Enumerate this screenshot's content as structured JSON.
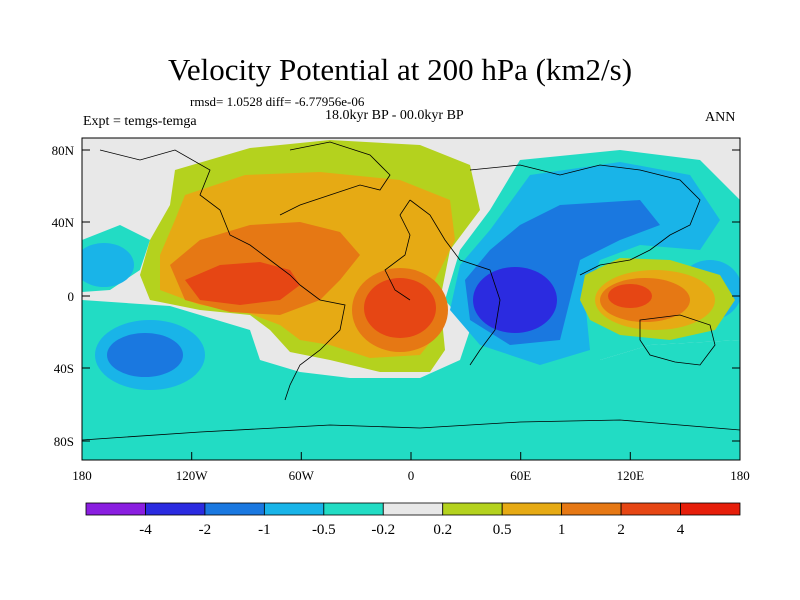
{
  "title": "Velocity Potential at 200 hPa (km2/s)",
  "stats": "rmsd= 1.0528 diff= -6.77956e-06",
  "period": "18.0kyr BP - 00.0kyr BP",
  "experiment": "Expt = temgs-temga",
  "season": "ANN",
  "lat_labels": [
    "80N",
    "40N",
    "0",
    "40S",
    "80S"
  ],
  "lon_labels": [
    "180",
    "120W",
    "60W",
    "0",
    "60E",
    "120E",
    "180"
  ],
  "colorbar": {
    "labels": [
      "-4",
      "-2",
      "-1",
      "-0.5",
      "-0.2",
      "0.2",
      "0.5",
      "1",
      "2",
      "4"
    ],
    "colors": [
      "#8a1ee0",
      "#2b2be0",
      "#1a78e0",
      "#19b4e8",
      "#22dcc4",
      "#e8e8e8",
      "#b4d21e",
      "#e6aa14",
      "#e67814",
      "#e64614",
      "#e61e0a"
    ]
  }
}
